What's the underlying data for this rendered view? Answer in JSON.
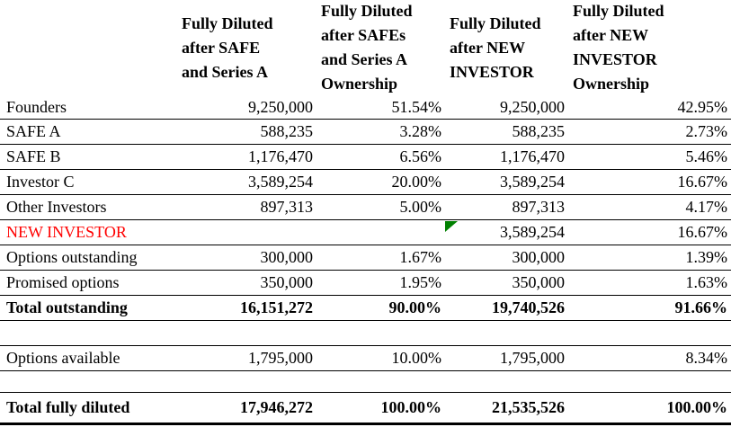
{
  "colors": {
    "new_investor_text": "#ff0000",
    "error_triangle": "#008000",
    "border": "#000000",
    "text": "#000000",
    "background": "#ffffff"
  },
  "table": {
    "columns": {
      "label": "",
      "fd_safe_series_a": "Fully Diluted\nafter SAFE\nand Series A",
      "fd_safe_series_a_ownership": "Fully Diluted\nafter SAFEs\nand Series A\nOwnership",
      "fd_new_investor": "Fully Diluted\nafter NEW\nINVESTOR",
      "fd_new_investor_ownership": "Fully Diluted\nafter NEW\nINVESTOR\nOwnership"
    },
    "rows": [
      {
        "label": "Founders",
        "shares_a": "9,250,000",
        "pct_a": "51.54%",
        "shares_b": "9,250,000",
        "pct_b": "42.95%"
      },
      {
        "label": "SAFE A",
        "shares_a": "588,235",
        "pct_a": "3.28%",
        "shares_b": "588,235",
        "pct_b": "2.73%"
      },
      {
        "label": "SAFE B",
        "shares_a": "1,176,470",
        "pct_a": "6.56%",
        "shares_b": "1,176,470",
        "pct_b": "5.46%"
      },
      {
        "label": "Investor C",
        "shares_a": "3,589,254",
        "pct_a": "20.00%",
        "shares_b": "3,589,254",
        "pct_b": "16.67%"
      },
      {
        "label": "Other Investors",
        "shares_a": "897,313",
        "pct_a": "5.00%",
        "shares_b": "897,313",
        "pct_b": "4.17%"
      },
      {
        "label": "NEW INVESTOR",
        "shares_a": "",
        "pct_a": "",
        "shares_b": "3,589,254",
        "pct_b": "16.67%"
      },
      {
        "label": "Options outstanding",
        "shares_a": "300,000",
        "pct_a": "1.67%",
        "shares_b": "300,000",
        "pct_b": "1.39%"
      },
      {
        "label": "Promised options",
        "shares_a": "350,000",
        "pct_a": "1.95%",
        "shares_b": "350,000",
        "pct_b": "1.63%"
      },
      {
        "label": "Total outstanding",
        "shares_a": "16,151,272",
        "pct_a": "90.00%",
        "shares_b": "19,740,526",
        "pct_b": "91.66%"
      },
      {
        "label": "Options available",
        "shares_a": "1,795,000",
        "pct_a": "10.00%",
        "shares_b": "1,795,000",
        "pct_b": "8.34%"
      },
      {
        "label": "Total fully diluted",
        "shares_a": "17,946,272",
        "pct_a": "100.00%",
        "shares_b": "21,535,526",
        "pct_b": "100.00%"
      }
    ]
  }
}
